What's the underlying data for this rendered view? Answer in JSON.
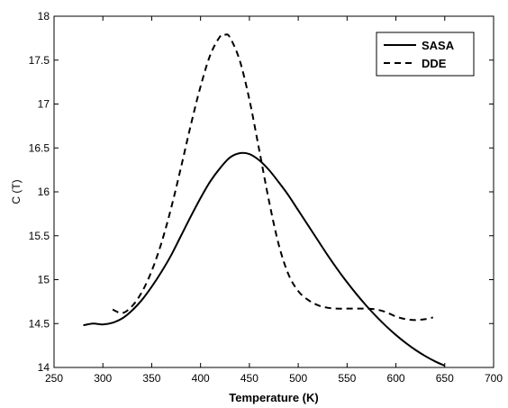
{
  "chart_data": {
    "type": "line",
    "xlabel": "Temperature (K)",
    "ylabel": "C (T)",
    "xlim": [
      250,
      700
    ],
    "ylim": [
      14,
      18
    ],
    "xticks": [
      250,
      300,
      350,
      400,
      450,
      500,
      550,
      600,
      650,
      700
    ],
    "xtick_labels": [
      "250",
      "300",
      "350",
      "400",
      "450",
      "500",
      "550",
      "600",
      "650",
      "700"
    ],
    "yticks": [
      14,
      14.5,
      15,
      15.5,
      16,
      16.5,
      17,
      17.5,
      18
    ],
    "ytick_labels": [
      "14",
      "14.5",
      "15",
      "15.5",
      "16",
      "16.5",
      "17",
      "17.5",
      "18"
    ],
    "grid": false,
    "legend_position": "top-right",
    "series": [
      {
        "name": "SASA",
        "style": "solid",
        "color": "#000000",
        "x": [
          280,
          290,
          300,
          310,
          320,
          330,
          340,
          350,
          360,
          370,
          380,
          390,
          400,
          410,
          420,
          430,
          440,
          450,
          460,
          470,
          480,
          490,
          500,
          510,
          520,
          530,
          540,
          550,
          560,
          570,
          580,
          590,
          600,
          610,
          620,
          630,
          640,
          650
        ],
        "y": [
          14.48,
          14.5,
          14.49,
          14.51,
          14.56,
          14.65,
          14.77,
          14.92,
          15.09,
          15.28,
          15.5,
          15.72,
          15.93,
          16.12,
          16.27,
          16.39,
          16.44,
          16.43,
          16.36,
          16.25,
          16.11,
          15.96,
          15.79,
          15.62,
          15.45,
          15.28,
          15.12,
          14.97,
          14.83,
          14.7,
          14.58,
          14.47,
          14.37,
          14.28,
          14.2,
          14.13,
          14.07,
          14.02
        ]
      },
      {
        "name": "DDE",
        "style": "dashed",
        "color": "#000000",
        "x": [
          310,
          320,
          330,
          340,
          350,
          360,
          370,
          380,
          390,
          400,
          410,
          420,
          425,
          430,
          440,
          450,
          460,
          470,
          480,
          490,
          500,
          510,
          520,
          530,
          540,
          550,
          560,
          570,
          580,
          590,
          600,
          610,
          620,
          630,
          638
        ],
        "y": [
          14.66,
          14.62,
          14.7,
          14.86,
          15.1,
          15.42,
          15.82,
          16.28,
          16.76,
          17.2,
          17.56,
          17.77,
          17.79,
          17.76,
          17.5,
          17.05,
          16.48,
          15.9,
          15.4,
          15.06,
          14.87,
          14.77,
          14.71,
          14.68,
          14.67,
          14.67,
          14.67,
          14.67,
          14.66,
          14.63,
          14.58,
          14.55,
          14.54,
          14.55,
          14.57
        ]
      }
    ]
  }
}
